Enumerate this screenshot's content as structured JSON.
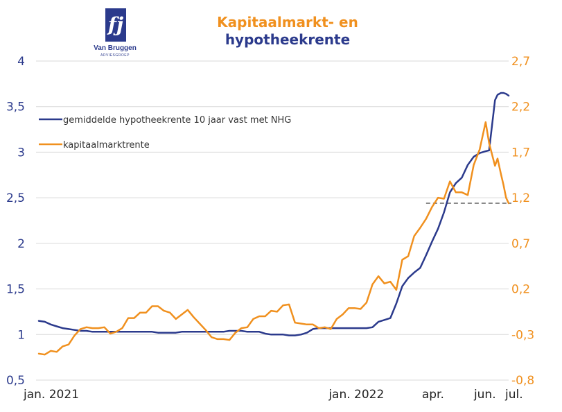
{
  "title": {
    "line1": "Kapitaalmarkt- en",
    "line2": "hypotheekrente"
  },
  "logo": {
    "mark": "fj",
    "name": "Van Bruggen",
    "sub": "ADVIESGROEP"
  },
  "colors": {
    "mortgage": "#2b3a8c",
    "capital": "#f0901e",
    "grid": "#d9d9d9",
    "reference": "#8a8a8a"
  },
  "chart_data": {
    "type": "line",
    "x_domain": [
      "2021-01-01",
      "2022-07-07"
    ],
    "x_ticks": [
      {
        "label": "jan. 2021",
        "date": "2021-01-01"
      },
      {
        "label": "jan. 2022",
        "date": "2022-01-01"
      },
      {
        "label": "apr.",
        "date": "2022-04-01"
      },
      {
        "label": "jun.",
        "date": "2022-06-01"
      },
      {
        "label": "jul.",
        "date": "2022-07-01"
      }
    ],
    "y_left": {
      "min": 0.5,
      "max": 4,
      "ticks": [
        "0,5",
        "1",
        "1,5",
        "2",
        "2,5",
        "3",
        "3,5",
        "4"
      ]
    },
    "y_right": {
      "min": -0.8,
      "max": 2.7,
      "ticks": [
        "-0,8",
        "-0,3",
        "0,2",
        "0,7",
        "1,2",
        "1,7",
        "2,2",
        "2,7"
      ]
    },
    "grid": "horizontal",
    "legend_position": "top-left",
    "series": [
      {
        "name": "gemiddelde hypotheekrente 10 jaar vast met NHG",
        "axis": "left",
        "points": [
          [
            "2021-01-01",
            1.15
          ],
          [
            "2021-01-08",
            1.14
          ],
          [
            "2021-01-15",
            1.11
          ],
          [
            "2021-01-22",
            1.09
          ],
          [
            "2021-01-29",
            1.07
          ],
          [
            "2021-02-05",
            1.06
          ],
          [
            "2021-02-12",
            1.05
          ],
          [
            "2021-02-19",
            1.04
          ],
          [
            "2021-02-26",
            1.04
          ],
          [
            "2021-03-05",
            1.03
          ],
          [
            "2021-03-12",
            1.03
          ],
          [
            "2021-03-19",
            1.03
          ],
          [
            "2021-03-26",
            1.03
          ],
          [
            "2021-04-02",
            1.03
          ],
          [
            "2021-04-09",
            1.03
          ],
          [
            "2021-04-16",
            1.03
          ],
          [
            "2021-04-23",
            1.03
          ],
          [
            "2021-04-30",
            1.03
          ],
          [
            "2021-05-07",
            1.03
          ],
          [
            "2021-05-14",
            1.03
          ],
          [
            "2021-05-21",
            1.02
          ],
          [
            "2021-05-28",
            1.02
          ],
          [
            "2021-06-04",
            1.02
          ],
          [
            "2021-06-11",
            1.02
          ],
          [
            "2021-06-18",
            1.03
          ],
          [
            "2021-06-25",
            1.03
          ],
          [
            "2021-07-02",
            1.03
          ],
          [
            "2021-07-09",
            1.03
          ],
          [
            "2021-07-16",
            1.03
          ],
          [
            "2021-07-23",
            1.03
          ],
          [
            "2021-07-30",
            1.03
          ],
          [
            "2021-08-06",
            1.03
          ],
          [
            "2021-08-13",
            1.04
          ],
          [
            "2021-08-20",
            1.04
          ],
          [
            "2021-08-27",
            1.04
          ],
          [
            "2021-09-03",
            1.03
          ],
          [
            "2021-09-10",
            1.03
          ],
          [
            "2021-09-17",
            1.03
          ],
          [
            "2021-09-24",
            1.01
          ],
          [
            "2021-10-01",
            1.0
          ],
          [
            "2021-10-08",
            1.0
          ],
          [
            "2021-10-15",
            1.0
          ],
          [
            "2021-10-22",
            0.99
          ],
          [
            "2021-10-29",
            0.99
          ],
          [
            "2021-11-05",
            1.0
          ],
          [
            "2021-11-12",
            1.02
          ],
          [
            "2021-11-19",
            1.06
          ],
          [
            "2021-11-26",
            1.07
          ],
          [
            "2021-12-03",
            1.07
          ],
          [
            "2021-12-10",
            1.07
          ],
          [
            "2021-12-17",
            1.07
          ],
          [
            "2021-12-24",
            1.07
          ],
          [
            "2021-12-31",
            1.07
          ],
          [
            "2022-01-07",
            1.07
          ],
          [
            "2022-01-14",
            1.07
          ],
          [
            "2022-01-21",
            1.07
          ],
          [
            "2022-01-28",
            1.08
          ],
          [
            "2022-02-04",
            1.14
          ],
          [
            "2022-02-11",
            1.16
          ],
          [
            "2022-02-18",
            1.18
          ],
          [
            "2022-02-25",
            1.34
          ],
          [
            "2022-03-04",
            1.53
          ],
          [
            "2022-03-11",
            1.62
          ],
          [
            "2022-03-18",
            1.68
          ],
          [
            "2022-03-25",
            1.73
          ],
          [
            "2022-04-01",
            1.87
          ],
          [
            "2022-04-08",
            2.02
          ],
          [
            "2022-04-15",
            2.16
          ],
          [
            "2022-04-22",
            2.34
          ],
          [
            "2022-04-29",
            2.56
          ],
          [
            "2022-05-06",
            2.66
          ],
          [
            "2022-05-13",
            2.72
          ],
          [
            "2022-05-20",
            2.86
          ],
          [
            "2022-05-27",
            2.95
          ],
          [
            "2022-06-03",
            2.99
          ],
          [
            "2022-06-10",
            3.01
          ],
          [
            "2022-06-14",
            3.02
          ],
          [
            "2022-06-21",
            3.57
          ],
          [
            "2022-06-24",
            3.63
          ],
          [
            "2022-06-28",
            3.65
          ],
          [
            "2022-07-01",
            3.65
          ],
          [
            "2022-07-04",
            3.64
          ],
          [
            "2022-07-07",
            3.62
          ]
        ]
      },
      {
        "name": "kapitaalmarktrente",
        "axis": "right",
        "points": [
          [
            "2021-01-01",
            -0.51
          ],
          [
            "2021-01-08",
            -0.52
          ],
          [
            "2021-01-15",
            -0.48
          ],
          [
            "2021-01-22",
            -0.49
          ],
          [
            "2021-01-29",
            -0.43
          ],
          [
            "2021-02-05",
            -0.41
          ],
          [
            "2021-02-12",
            -0.31
          ],
          [
            "2021-02-19",
            -0.24
          ],
          [
            "2021-02-26",
            -0.22
          ],
          [
            "2021-03-05",
            -0.23
          ],
          [
            "2021-03-12",
            -0.23
          ],
          [
            "2021-03-19",
            -0.22
          ],
          [
            "2021-03-26",
            -0.29
          ],
          [
            "2021-04-02",
            -0.27
          ],
          [
            "2021-04-09",
            -0.23
          ],
          [
            "2021-04-16",
            -0.12
          ],
          [
            "2021-04-23",
            -0.12
          ],
          [
            "2021-04-30",
            -0.06
          ],
          [
            "2021-05-07",
            -0.06
          ],
          [
            "2021-05-14",
            0.01
          ],
          [
            "2021-05-21",
            0.01
          ],
          [
            "2021-05-28",
            -0.04
          ],
          [
            "2021-06-04",
            -0.06
          ],
          [
            "2021-06-11",
            -0.13
          ],
          [
            "2021-06-18",
            -0.08
          ],
          [
            "2021-06-25",
            -0.03
          ],
          [
            "2021-07-02",
            -0.11
          ],
          [
            "2021-07-09",
            -0.18
          ],
          [
            "2021-07-16",
            -0.25
          ],
          [
            "2021-07-23",
            -0.33
          ],
          [
            "2021-07-30",
            -0.35
          ],
          [
            "2021-08-06",
            -0.35
          ],
          [
            "2021-08-13",
            -0.36
          ],
          [
            "2021-08-20",
            -0.28
          ],
          [
            "2021-08-27",
            -0.23
          ],
          [
            "2021-09-03",
            -0.22
          ],
          [
            "2021-09-10",
            -0.13
          ],
          [
            "2021-09-17",
            -0.1
          ],
          [
            "2021-09-24",
            -0.1
          ],
          [
            "2021-10-01",
            -0.04
          ],
          [
            "2021-10-08",
            -0.05
          ],
          [
            "2021-10-15",
            0.02
          ],
          [
            "2021-10-22",
            0.03
          ],
          [
            "2021-10-29",
            -0.17
          ],
          [
            "2021-11-05",
            -0.18
          ],
          [
            "2021-11-12",
            -0.19
          ],
          [
            "2021-11-19",
            -0.19
          ],
          [
            "2021-11-26",
            -0.23
          ],
          [
            "2021-12-03",
            -0.22
          ],
          [
            "2021-12-10",
            -0.24
          ],
          [
            "2021-12-17",
            -0.13
          ],
          [
            "2021-12-24",
            -0.08
          ],
          [
            "2021-12-31",
            -0.01
          ],
          [
            "2022-01-07",
            -0.01
          ],
          [
            "2022-01-14",
            -0.02
          ],
          [
            "2022-01-21",
            0.05
          ],
          [
            "2022-01-28",
            0.25
          ],
          [
            "2022-02-04",
            0.34
          ],
          [
            "2022-02-11",
            0.26
          ],
          [
            "2022-02-18",
            0.28
          ],
          [
            "2022-02-25",
            0.19
          ],
          [
            "2022-03-04",
            0.52
          ],
          [
            "2022-03-11",
            0.56
          ],
          [
            "2022-03-18",
            0.78
          ],
          [
            "2022-03-25",
            0.87
          ],
          [
            "2022-04-01",
            0.97
          ],
          [
            "2022-04-08",
            1.1
          ],
          [
            "2022-04-15",
            1.2
          ],
          [
            "2022-04-22",
            1.19
          ],
          [
            "2022-04-29",
            1.38
          ],
          [
            "2022-05-06",
            1.26
          ],
          [
            "2022-05-13",
            1.26
          ],
          [
            "2022-05-20",
            1.23
          ],
          [
            "2022-05-27",
            1.56
          ],
          [
            "2022-06-03",
            1.73
          ],
          [
            "2022-06-10",
            2.03
          ],
          [
            "2022-06-14",
            1.8
          ],
          [
            "2022-06-21",
            1.55
          ],
          [
            "2022-06-24",
            1.63
          ],
          [
            "2022-06-28",
            1.46
          ],
          [
            "2022-07-01",
            1.34
          ],
          [
            "2022-07-04",
            1.2
          ],
          [
            "2022-07-07",
            1.14
          ]
        ]
      }
    ],
    "reference_line": {
      "style": "dashed",
      "x": [
        "2022-04-01",
        "2022-07-07"
      ],
      "right_value": 1.14
    }
  }
}
